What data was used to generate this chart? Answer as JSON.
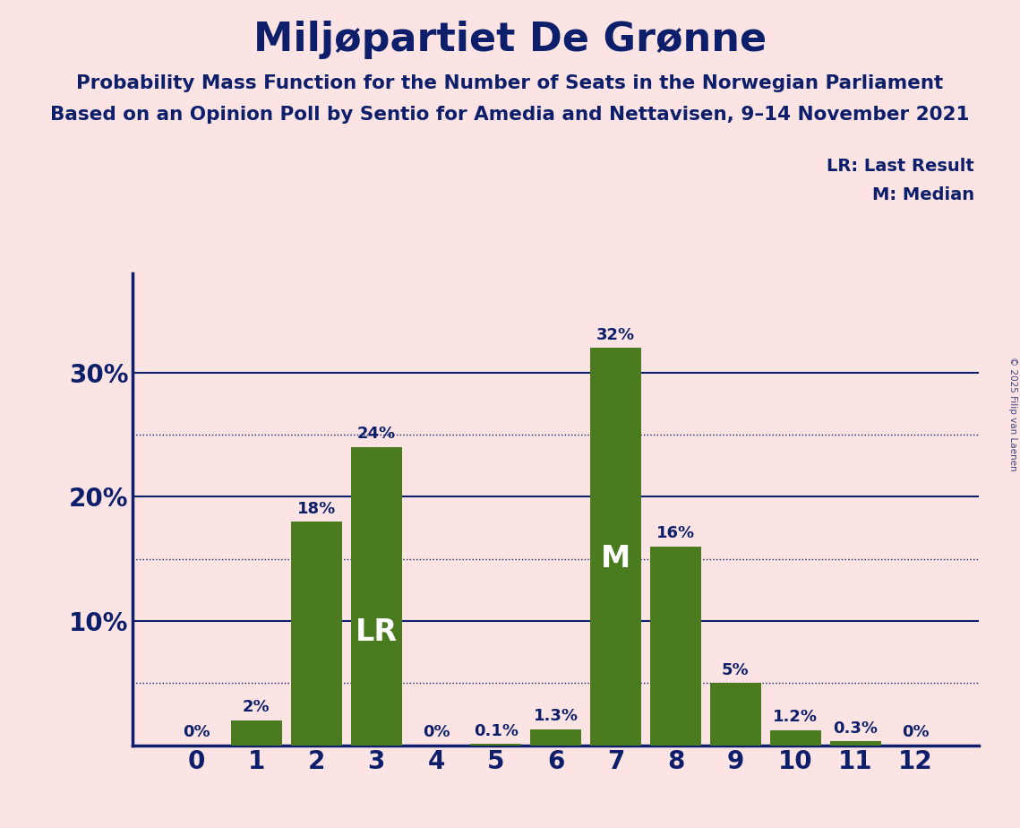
{
  "title": "Miljøpartiet De Grønne",
  "subtitle1": "Probability Mass Function for the Number of Seats in the Norwegian Parliament",
  "subtitle2": "Based on an Opinion Poll by Sentio for Amedia and Nettavisen, 9–14 November 2021",
  "copyright": "© 2025 Filip van Laenen",
  "categories": [
    0,
    1,
    2,
    3,
    4,
    5,
    6,
    7,
    8,
    9,
    10,
    11,
    12
  ],
  "values": [
    0.0,
    0.02,
    0.18,
    0.24,
    0.0,
    0.001,
    0.013,
    0.32,
    0.16,
    0.05,
    0.012,
    0.003,
    0.0
  ],
  "labels": [
    "0%",
    "2%",
    "18%",
    "24%",
    "0%",
    "0.1%",
    "1.3%",
    "32%",
    "16%",
    "5%",
    "1.2%",
    "0.3%",
    "0%"
  ],
  "bar_color": "#4a7c1f",
  "background_color": "#fce4e4",
  "text_color": "#0d1f6b",
  "lr_bar": 3,
  "median_bar": 7,
  "ylim": [
    0,
    0.38
  ],
  "yticks": [
    0.1,
    0.2,
    0.3
  ],
  "ytick_labels": [
    "10%",
    "20%",
    "30%"
  ],
  "solid_grid_lines": [
    0.1,
    0.2,
    0.3
  ],
  "dotted_grid_lines": [
    0.05,
    0.15,
    0.25
  ]
}
